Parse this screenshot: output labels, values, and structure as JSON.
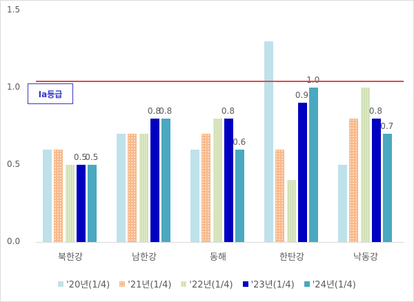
{
  "chart_data": {
    "type": "bar",
    "title": "",
    "xlabel": "",
    "ylabel": "",
    "ylim": [
      0,
      1.5
    ],
    "yticks": [
      "0.0",
      "0.5",
      "1.0",
      "1.5"
    ],
    "grid": false,
    "legend_position": "bottom",
    "categories": [
      "북한강",
      "남한강",
      "동해",
      "한탄강",
      "낙동강"
    ],
    "series": [
      {
        "name": "'20년(1/4)",
        "values": [
          0.6,
          0.7,
          0.6,
          1.3,
          0.5
        ],
        "color": "#bfe1ea",
        "labels": [
          "",
          "",
          "",
          "",
          ""
        ]
      },
      {
        "name": "'21년(1/4)",
        "values": [
          0.6,
          0.7,
          0.7,
          0.6,
          0.8
        ],
        "color": "#f8b98a",
        "labels": [
          "",
          "",
          "",
          "",
          ""
        ]
      },
      {
        "name": "'22년(1/4)",
        "values": [
          0.5,
          0.7,
          0.8,
          0.4,
          1.0
        ],
        "color": "#dfeac8",
        "labels": [
          "",
          "",
          "",
          "",
          ""
        ]
      },
      {
        "name": "'23년(1/4)",
        "values": [
          0.5,
          0.8,
          0.8,
          0.9,
          0.8
        ],
        "color": "#0000c0",
        "labels": [
          "0.5",
          "0.8",
          "0.8",
          "0.9",
          "0.8"
        ]
      },
      {
        "name": "'24년(1/4)",
        "values": [
          0.5,
          0.8,
          0.6,
          1.0,
          0.7
        ],
        "color": "#4aa8c0",
        "labels": [
          "0.5",
          "0.8",
          "0.6",
          "1.0",
          "0.7"
        ]
      }
    ],
    "annotations": [
      {
        "type": "horizontal_line",
        "y": 1.04,
        "color": "#e8454a",
        "label": "Ia등급"
      }
    ]
  },
  "annotation_label": "Ia등급"
}
